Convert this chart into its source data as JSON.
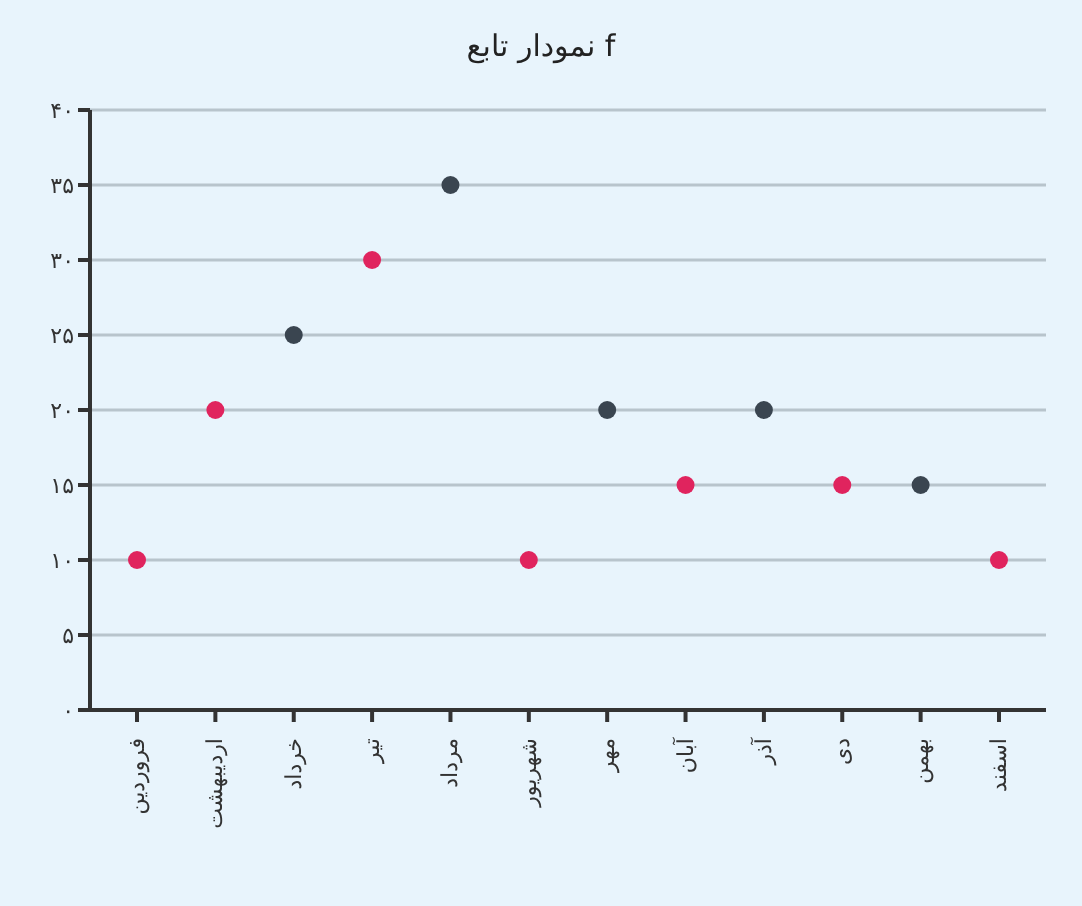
{
  "chart_data": {
    "type": "scatter",
    "title": "نمودار تابع f",
    "categories": [
      "فروردین",
      "اردیبهشت",
      "خرداد",
      "تیر",
      "مرداد",
      "شهریور",
      "مهر",
      "آبان",
      "آذر",
      "دی",
      "بهمن",
      "اسفند"
    ],
    "values": [
      10,
      20,
      25,
      30,
      35,
      10,
      20,
      15,
      20,
      15,
      15,
      10
    ],
    "colors": [
      "#e0245e",
      "#e0245e",
      "#3a4550",
      "#e0245e",
      "#3a4550",
      "#e0245e",
      "#3a4550",
      "#e0245e",
      "#3a4550",
      "#e0245e",
      "#3a4550",
      "#e0245e"
    ],
    "ylim": [
      0,
      40
    ],
    "yticks": [
      {
        "value": 0,
        "label": "۰"
      },
      {
        "value": 5,
        "label": "۵"
      },
      {
        "value": 10,
        "label": "۱۰"
      },
      {
        "value": 15,
        "label": "۱۵"
      },
      {
        "value": 20,
        "label": "۲۰"
      },
      {
        "value": 25,
        "label": "۲۵"
      },
      {
        "value": 30,
        "label": "۳۰"
      },
      {
        "value": 35,
        "label": "۳۵"
      },
      {
        "value": 40,
        "label": "۴۰"
      }
    ],
    "grid": "y",
    "marker": "circle"
  }
}
